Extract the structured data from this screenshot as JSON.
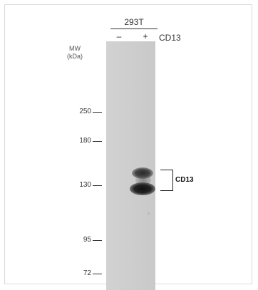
{
  "header": {
    "cell_line": "293T",
    "lanes": [
      "–",
      "+"
    ],
    "target": "CD13"
  },
  "mw_title": [
    "MW",
    "(kDa)"
  ],
  "markers": [
    "250",
    "180",
    "130",
    "95",
    "72"
  ],
  "band_annotation": "CD13"
}
